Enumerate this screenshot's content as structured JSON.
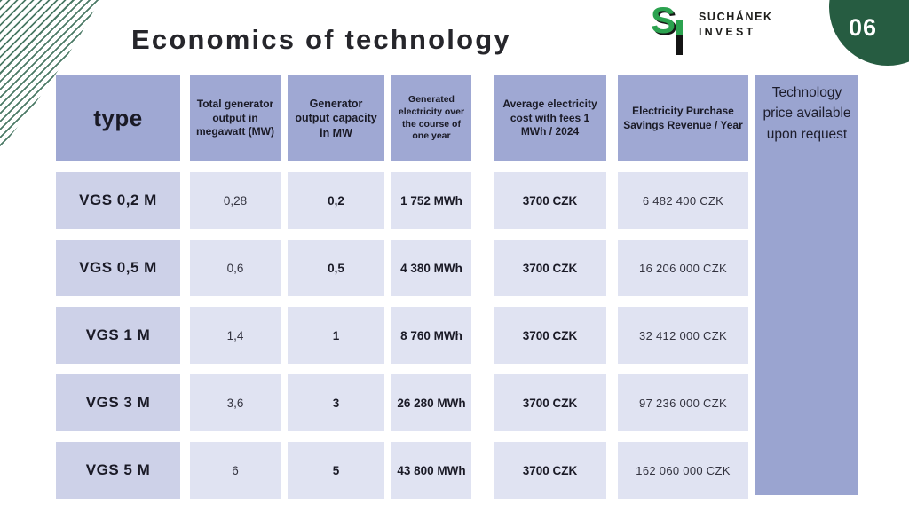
{
  "title": "Economics of technology",
  "page_number": "06",
  "logo": {
    "mark": "S",
    "line1": "SUCHÁNEK",
    "line2": "INVEST"
  },
  "colors": {
    "header_bg": "#9fa8d3",
    "row_label_bg": "#cdd1e8",
    "cell_bg": "#e0e3f2",
    "side_column_bg": "#9aa4d0",
    "page_circle_green": "#265c41",
    "logo_green": "#2ba24f",
    "stripe_green": "#4b7a66",
    "title_text": "#26262b"
  },
  "table": {
    "headers": [
      "type",
      "Total generator output in megawatt (MW)",
      "Generator output capacity in MW",
      "Generated electricity over the course of one year",
      "Average electricity cost with fees 1 MWh / 2024",
      "Electricity Purchase Savings Revenue / Year"
    ],
    "side_note": "Technology price available upon request",
    "rows": [
      [
        "VGS 0,2 M",
        "0,28",
        "0,2",
        "1 752 MWh",
        "3700 CZK",
        "6 482 400 CZK"
      ],
      [
        "VGS 0,5 M",
        "0,6",
        "0,5",
        "4 380 MWh",
        "3700 CZK",
        "16 206 000 CZK"
      ],
      [
        "VGS 1 M",
        "1,4",
        "1",
        "8 760 MWh",
        "3700 CZK",
        "32 412 000 CZK"
      ],
      [
        "VGS 3 M",
        "3,6",
        "3",
        "26 280 MWh",
        "3700 CZK",
        "97 236 000 CZK"
      ],
      [
        "VGS 5 M",
        "6",
        "5",
        "43 800 MWh",
        "3700 CZK",
        "162 060 000 CZK"
      ]
    ]
  }
}
